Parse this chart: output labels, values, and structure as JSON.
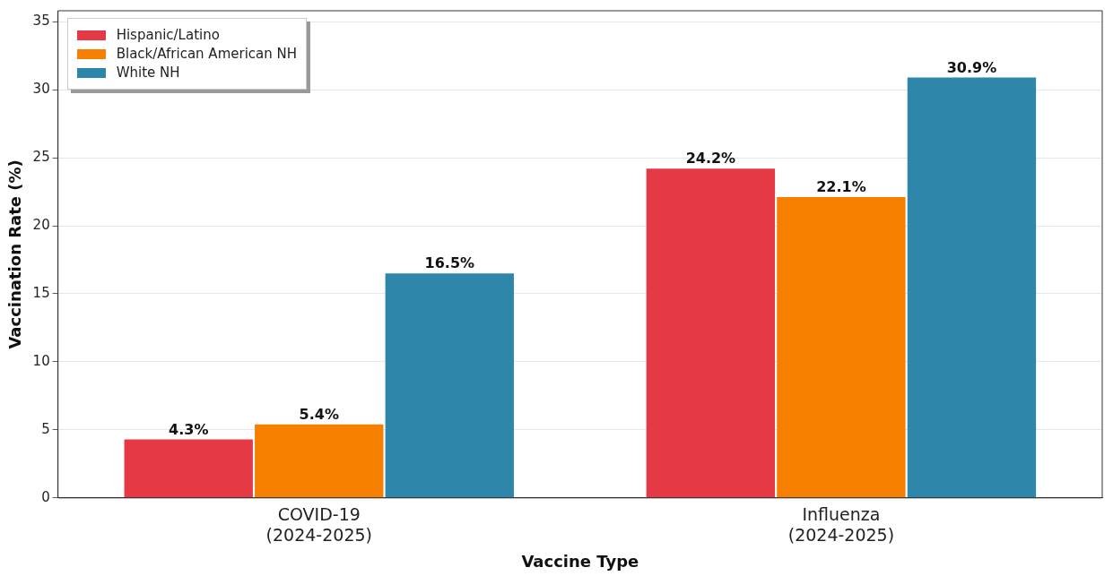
{
  "chart_data": {
    "type": "bar",
    "xlabel": "Vaccine Type",
    "ylabel": "Vaccination Rate (%)",
    "categories": [
      "COVID-19\n(2024-2025)",
      "Influenza\n(2024-2025)"
    ],
    "series": [
      {
        "name": "Hispanic/Latino",
        "color": "#e63946",
        "values": [
          4.3,
          24.2
        ],
        "value_labels": [
          "4.3%",
          "24.2%"
        ]
      },
      {
        "name": "Black/African American NH",
        "color": "#f77f00",
        "values": [
          5.4,
          22.1
        ],
        "value_labels": [
          "5.4%",
          "22.1%"
        ]
      },
      {
        "name": "White NH",
        "color": "#2e86ab",
        "values": [
          16.5,
          30.9
        ],
        "value_labels": [
          "16.5%",
          "30.9%"
        ]
      }
    ],
    "ylim": [
      0,
      35.8
    ],
    "yticks": [
      0,
      5,
      10,
      15,
      20,
      25,
      30,
      35
    ],
    "grid": "y",
    "legend": "top left"
  }
}
